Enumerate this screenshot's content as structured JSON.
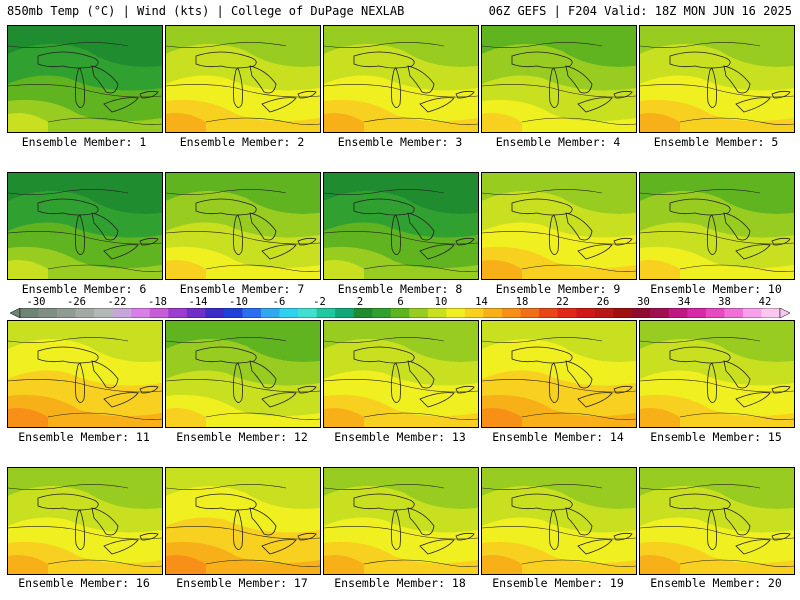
{
  "header": {
    "left": "850mb Temp (°C) | Wind (kts) | College of DuPage NEXLAB",
    "right": "06Z GEFS | F204 Valid: 18Z MON JUN 16 2025"
  },
  "colorbar": {
    "labels": [
      "-30",
      "-26",
      "-22",
      "-18",
      "-14",
      "-10",
      "-6",
      "-2",
      "2",
      "6",
      "10",
      "14",
      "18",
      "22",
      "26",
      "30",
      "34",
      "38",
      "42"
    ],
    "colors": [
      "#6e8474",
      "#7f8f83",
      "#909c93",
      "#a3aaa5",
      "#b4b8b6",
      "#c6a8d8",
      "#d880e8",
      "#c85cd8",
      "#9c3cd0",
      "#7030c8",
      "#3c2cc8",
      "#2040d8",
      "#2870f0",
      "#30a8f0",
      "#30d0f0",
      "#40e0d0",
      "#20c8a0",
      "#10a878",
      "#208c30",
      "#30a030",
      "#60b420",
      "#98cc20",
      "#c8e020",
      "#f0f020",
      "#f8d020",
      "#f8b018",
      "#f89018",
      "#f07018",
      "#e84818",
      "#e02818",
      "#d01818",
      "#b81818",
      "#a01010",
      "#900c30",
      "#a01050",
      "#c01880",
      "#d828a8",
      "#e848c0",
      "#f070d8",
      "#f8a0e8",
      "#f8c8f0"
    ]
  },
  "members": [
    {
      "label": "Ensemble Member: 1",
      "temp": 9
    },
    {
      "label": "Ensemble Member: 2",
      "temp": 14
    },
    {
      "label": "Ensemble Member: 3",
      "temp": 15
    },
    {
      "label": "Ensemble Member: 4",
      "temp": 12
    },
    {
      "label": "Ensemble Member: 5",
      "temp": 14
    },
    {
      "label": "Ensemble Member: 6",
      "temp": 9
    },
    {
      "label": "Ensemble Member: 7",
      "temp": 13
    },
    {
      "label": "Ensemble Member: 8",
      "temp": 8
    },
    {
      "label": "Ensemble Member: 9",
      "temp": 15
    },
    {
      "label": "Ensemble Member: 10",
      "temp": 13
    },
    {
      "label": "Ensemble Member: 11",
      "temp": 16
    },
    {
      "label": "Ensemble Member: 12",
      "temp": 13
    },
    {
      "label": "Ensemble Member: 13",
      "temp": 14
    },
    {
      "label": "Ensemble Member: 14",
      "temp": 16
    },
    {
      "label": "Ensemble Member: 15",
      "temp": 15
    },
    {
      "label": "Ensemble Member: 16",
      "temp": 14
    },
    {
      "label": "Ensemble Member: 17",
      "temp": 16
    },
    {
      "label": "Ensemble Member: 18",
      "temp": 14
    },
    {
      "label": "Ensemble Member: 19",
      "temp": 15
    },
    {
      "label": "Ensemble Member: 20",
      "temp": 15
    }
  ]
}
